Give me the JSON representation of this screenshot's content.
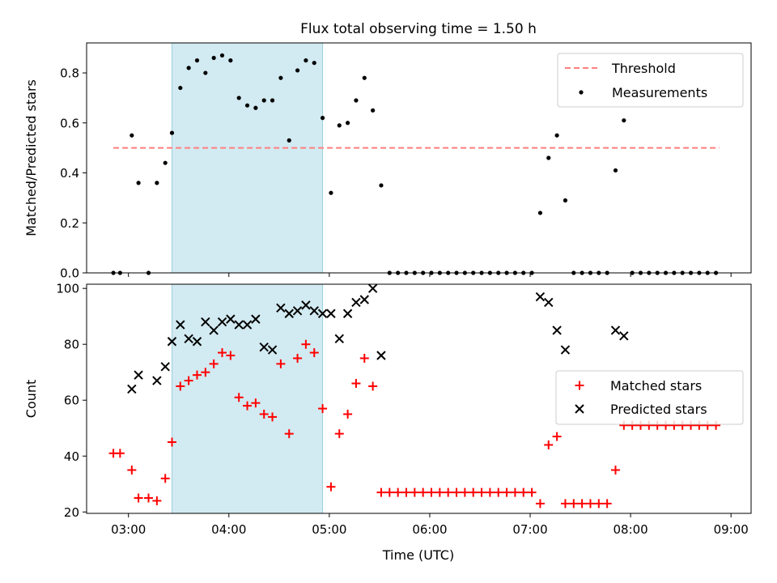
{
  "chart_data": [
    {
      "type": "scatter",
      "title": "Flux total observing time = 1.50 h",
      "xlabel": "",
      "ylabel": "Matched/Predicted stars",
      "xlim": [
        "02:35",
        "09:12"
      ],
      "ylim": [
        0,
        0.92
      ],
      "x_ticks": [
        "03:00",
        "04:00",
        "05:00",
        "06:00",
        "07:00",
        "08:00",
        "09:00"
      ],
      "y_ticks": [
        "0.0",
        "0.2",
        "0.4",
        "0.6",
        "0.8"
      ],
      "grid": false,
      "legend_position": "top-right",
      "shaded_interval": {
        "start": "03:26",
        "end": "04:56",
        "color": "#add8e6"
      },
      "series": [
        {
          "name": "Threshold",
          "style": "dashed-line",
          "color": "#ff7f7f",
          "points": [
            {
              "x": "02:51",
              "y": 0.5
            },
            {
              "x": "08:53",
              "y": 0.5
            }
          ]
        },
        {
          "name": "Measurements",
          "style": "dot",
          "color": "#000000",
          "points": [
            {
              "x": "02:51",
              "y": 0.0
            },
            {
              "x": "02:55",
              "y": 0.0
            },
            {
              "x": "03:02",
              "y": 0.55
            },
            {
              "x": "03:06",
              "y": 0.36
            },
            {
              "x": "03:12",
              "y": 0.0
            },
            {
              "x": "03:17",
              "y": 0.36
            },
            {
              "x": "03:22",
              "y": 0.44
            },
            {
              "x": "03:26",
              "y": 0.56
            },
            {
              "x": "03:31",
              "y": 0.74
            },
            {
              "x": "03:36",
              "y": 0.82
            },
            {
              "x": "03:41",
              "y": 0.85
            },
            {
              "x": "03:46",
              "y": 0.8
            },
            {
              "x": "03:51",
              "y": 0.86
            },
            {
              "x": "03:56",
              "y": 0.87
            },
            {
              "x": "04:01",
              "y": 0.85
            },
            {
              "x": "04:06",
              "y": 0.7
            },
            {
              "x": "04:11",
              "y": 0.67
            },
            {
              "x": "04:16",
              "y": 0.66
            },
            {
              "x": "04:21",
              "y": 0.69
            },
            {
              "x": "04:26",
              "y": 0.69
            },
            {
              "x": "04:31",
              "y": 0.78
            },
            {
              "x": "04:36",
              "y": 0.53
            },
            {
              "x": "04:41",
              "y": 0.81
            },
            {
              "x": "04:46",
              "y": 0.85
            },
            {
              "x": "04:51",
              "y": 0.84
            },
            {
              "x": "04:56",
              "y": 0.62
            },
            {
              "x": "05:01",
              "y": 0.32
            },
            {
              "x": "05:06",
              "y": 0.59
            },
            {
              "x": "05:11",
              "y": 0.6
            },
            {
              "x": "05:16",
              "y": 0.69
            },
            {
              "x": "05:21",
              "y": 0.78
            },
            {
              "x": "05:26",
              "y": 0.65
            },
            {
              "x": "05:31",
              "y": 0.35
            },
            {
              "x": "05:36",
              "y": 0.0
            },
            {
              "x": "05:41",
              "y": 0.0
            },
            {
              "x": "05:46",
              "y": 0.0
            },
            {
              "x": "05:51",
              "y": 0.0
            },
            {
              "x": "05:56",
              "y": 0.0
            },
            {
              "x": "06:01",
              "y": 0.0
            },
            {
              "x": "06:06",
              "y": 0.0
            },
            {
              "x": "06:11",
              "y": 0.0
            },
            {
              "x": "06:16",
              "y": 0.0
            },
            {
              "x": "06:21",
              "y": 0.0
            },
            {
              "x": "06:26",
              "y": 0.0
            },
            {
              "x": "06:31",
              "y": 0.0
            },
            {
              "x": "06:36",
              "y": 0.0
            },
            {
              "x": "06:41",
              "y": 0.0
            },
            {
              "x": "06:46",
              "y": 0.0
            },
            {
              "x": "06:51",
              "y": 0.0
            },
            {
              "x": "06:56",
              "y": 0.0
            },
            {
              "x": "07:01",
              "y": 0.0
            },
            {
              "x": "07:06",
              "y": 0.24
            },
            {
              "x": "07:11",
              "y": 0.46
            },
            {
              "x": "07:16",
              "y": 0.55
            },
            {
              "x": "07:21",
              "y": 0.29
            },
            {
              "x": "07:26",
              "y": 0.0
            },
            {
              "x": "07:31",
              "y": 0.0
            },
            {
              "x": "07:36",
              "y": 0.0
            },
            {
              "x": "07:41",
              "y": 0.0
            },
            {
              "x": "07:46",
              "y": 0.0
            },
            {
              "x": "07:51",
              "y": 0.41
            },
            {
              "x": "07:56",
              "y": 0.61
            },
            {
              "x": "08:01",
              "y": 0.0
            },
            {
              "x": "08:06",
              "y": 0.0
            },
            {
              "x": "08:11",
              "y": 0.0
            },
            {
              "x": "08:16",
              "y": 0.0
            },
            {
              "x": "08:21",
              "y": 0.0
            },
            {
              "x": "08:26",
              "y": 0.0
            },
            {
              "x": "08:31",
              "y": 0.0
            },
            {
              "x": "08:36",
              "y": 0.0
            },
            {
              "x": "08:41",
              "y": 0.0
            },
            {
              "x": "08:46",
              "y": 0.0
            },
            {
              "x": "08:51",
              "y": 0.0
            }
          ]
        }
      ]
    },
    {
      "type": "scatter",
      "title": "",
      "xlabel": "Time (UTC)",
      "ylabel": "Count",
      "xlim": [
        "02:35",
        "09:12"
      ],
      "ylim": [
        19.5,
        101.5
      ],
      "x_ticks": [
        "03:00",
        "04:00",
        "05:00",
        "06:00",
        "07:00",
        "08:00",
        "09:00"
      ],
      "y_ticks": [
        "20",
        "40",
        "60",
        "80",
        "100"
      ],
      "grid": false,
      "legend_position": "center-right",
      "shaded_interval": {
        "start": "03:26",
        "end": "04:56",
        "color": "#add8e6"
      },
      "series": [
        {
          "name": "Matched stars",
          "style": "plus",
          "color": "#ff0000",
          "points": [
            {
              "x": "02:51",
              "y": 41
            },
            {
              "x": "02:55",
              "y": 41
            },
            {
              "x": "03:02",
              "y": 35
            },
            {
              "x": "03:06",
              "y": 25
            },
            {
              "x": "03:12",
              "y": 25
            },
            {
              "x": "03:17",
              "y": 24
            },
            {
              "x": "03:22",
              "y": 32
            },
            {
              "x": "03:26",
              "y": 45
            },
            {
              "x": "03:31",
              "y": 65
            },
            {
              "x": "03:36",
              "y": 67
            },
            {
              "x": "03:41",
              "y": 69
            },
            {
              "x": "03:46",
              "y": 70
            },
            {
              "x": "03:51",
              "y": 73
            },
            {
              "x": "03:56",
              "y": 77
            },
            {
              "x": "04:01",
              "y": 76
            },
            {
              "x": "04:06",
              "y": 61
            },
            {
              "x": "04:11",
              "y": 58
            },
            {
              "x": "04:16",
              "y": 59
            },
            {
              "x": "04:21",
              "y": 55
            },
            {
              "x": "04:26",
              "y": 54
            },
            {
              "x": "04:31",
              "y": 73
            },
            {
              "x": "04:36",
              "y": 48
            },
            {
              "x": "04:41",
              "y": 75
            },
            {
              "x": "04:46",
              "y": 80
            },
            {
              "x": "04:51",
              "y": 77
            },
            {
              "x": "04:56",
              "y": 57
            },
            {
              "x": "05:01",
              "y": 29
            },
            {
              "x": "05:06",
              "y": 48
            },
            {
              "x": "05:11",
              "y": 55
            },
            {
              "x": "05:16",
              "y": 66
            },
            {
              "x": "05:21",
              "y": 75
            },
            {
              "x": "05:26",
              "y": 65
            },
            {
              "x": "05:31",
              "y": 27
            },
            {
              "x": "05:36",
              "y": 27
            },
            {
              "x": "05:41",
              "y": 27
            },
            {
              "x": "05:46",
              "y": 27
            },
            {
              "x": "05:51",
              "y": 27
            },
            {
              "x": "05:56",
              "y": 27
            },
            {
              "x": "06:01",
              "y": 27
            },
            {
              "x": "06:06",
              "y": 27
            },
            {
              "x": "06:11",
              "y": 27
            },
            {
              "x": "06:16",
              "y": 27
            },
            {
              "x": "06:21",
              "y": 27
            },
            {
              "x": "06:26",
              "y": 27
            },
            {
              "x": "06:31",
              "y": 27
            },
            {
              "x": "06:36",
              "y": 27
            },
            {
              "x": "06:41",
              "y": 27
            },
            {
              "x": "06:46",
              "y": 27
            },
            {
              "x": "06:51",
              "y": 27
            },
            {
              "x": "06:56",
              "y": 27
            },
            {
              "x": "07:01",
              "y": 27
            },
            {
              "x": "07:06",
              "y": 23
            },
            {
              "x": "07:11",
              "y": 44
            },
            {
              "x": "07:16",
              "y": 47
            },
            {
              "x": "07:21",
              "y": 23
            },
            {
              "x": "07:26",
              "y": 23
            },
            {
              "x": "07:31",
              "y": 23
            },
            {
              "x": "07:36",
              "y": 23
            },
            {
              "x": "07:41",
              "y": 23
            },
            {
              "x": "07:46",
              "y": 23
            },
            {
              "x": "07:51",
              "y": 35
            },
            {
              "x": "07:56",
              "y": 51
            },
            {
              "x": "08:01",
              "y": 51
            },
            {
              "x": "08:06",
              "y": 51
            },
            {
              "x": "08:11",
              "y": 51
            },
            {
              "x": "08:16",
              "y": 51
            },
            {
              "x": "08:21",
              "y": 51
            },
            {
              "x": "08:26",
              "y": 51
            },
            {
              "x": "08:31",
              "y": 51
            },
            {
              "x": "08:36",
              "y": 51
            },
            {
              "x": "08:41",
              "y": 51
            },
            {
              "x": "08:46",
              "y": 51
            },
            {
              "x": "08:51",
              "y": 51
            }
          ]
        },
        {
          "name": "Predicted stars",
          "style": "x",
          "color": "#000000",
          "points": [
            {
              "x": "03:02",
              "y": 64
            },
            {
              "x": "03:06",
              "y": 69
            },
            {
              "x": "03:17",
              "y": 67
            },
            {
              "x": "03:22",
              "y": 72
            },
            {
              "x": "03:26",
              "y": 81
            },
            {
              "x": "03:31",
              "y": 87
            },
            {
              "x": "03:36",
              "y": 82
            },
            {
              "x": "03:41",
              "y": 81
            },
            {
              "x": "03:46",
              "y": 88
            },
            {
              "x": "03:51",
              "y": 85
            },
            {
              "x": "03:56",
              "y": 88
            },
            {
              "x": "04:01",
              "y": 89
            },
            {
              "x": "04:06",
              "y": 87
            },
            {
              "x": "04:11",
              "y": 87
            },
            {
              "x": "04:16",
              "y": 89
            },
            {
              "x": "04:21",
              "y": 79
            },
            {
              "x": "04:26",
              "y": 78
            },
            {
              "x": "04:31",
              "y": 93
            },
            {
              "x": "04:36",
              "y": 91
            },
            {
              "x": "04:41",
              "y": 92
            },
            {
              "x": "04:46",
              "y": 94
            },
            {
              "x": "04:51",
              "y": 92
            },
            {
              "x": "04:56",
              "y": 91
            },
            {
              "x": "05:01",
              "y": 91
            },
            {
              "x": "05:06",
              "y": 82
            },
            {
              "x": "05:11",
              "y": 91
            },
            {
              "x": "05:16",
              "y": 95
            },
            {
              "x": "05:21",
              "y": 96
            },
            {
              "x": "05:26",
              "y": 100
            },
            {
              "x": "05:31",
              "y": 76
            },
            {
              "x": "07:06",
              "y": 97
            },
            {
              "x": "07:11",
              "y": 95
            },
            {
              "x": "07:16",
              "y": 85
            },
            {
              "x": "07:21",
              "y": 78
            },
            {
              "x": "07:51",
              "y": 85
            },
            {
              "x": "07:56",
              "y": 83
            }
          ]
        }
      ]
    }
  ]
}
